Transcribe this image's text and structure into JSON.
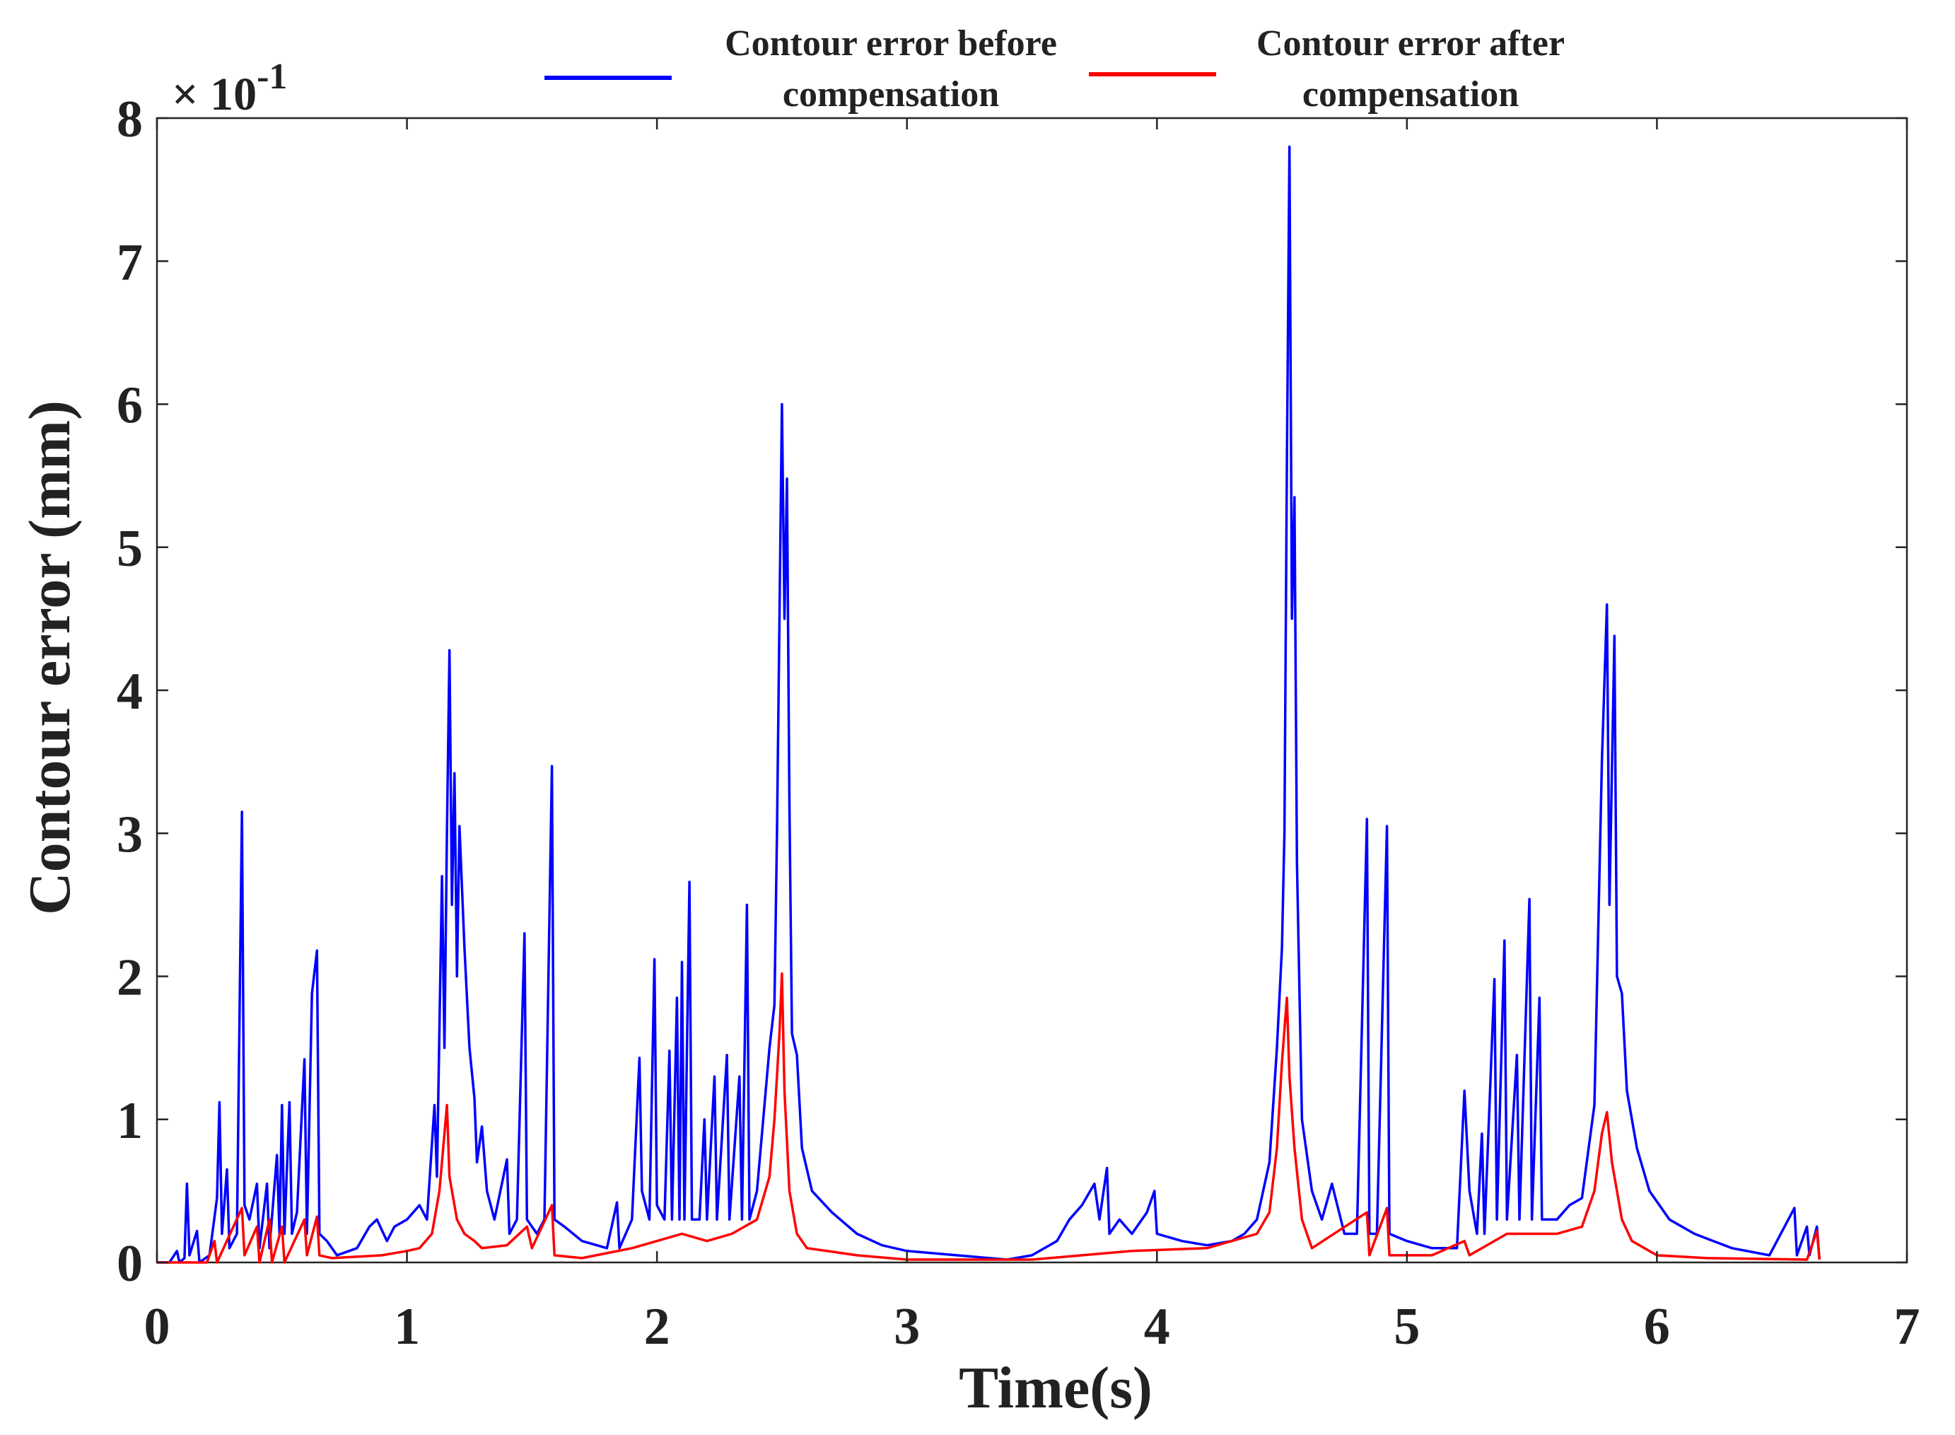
{
  "chart_data": {
    "type": "line",
    "xlabel": "Time(s)",
    "ylabel": "Contour error (mm)",
    "exponent_prefix": "× 10",
    "exponent_power": "-1",
    "xlim": [
      0,
      7
    ],
    "ylim": [
      0,
      8
    ],
    "x_ticks": [
      "0",
      "1",
      "2",
      "3",
      "4",
      "5",
      "6",
      "7"
    ],
    "y_ticks": [
      "0",
      "1",
      "2",
      "3",
      "4",
      "5",
      "6",
      "7",
      "8"
    ],
    "grid": false,
    "legend_position": "top",
    "series": [
      {
        "name_line1": "Contour error before",
        "name_line2": "compensation",
        "color": "#0000ff",
        "points": [
          [
            0.0,
            0.0
          ],
          [
            0.05,
            0.0
          ],
          [
            0.08,
            0.08
          ],
          [
            0.09,
            0.0
          ],
          [
            0.11,
            0.03
          ],
          [
            0.12,
            0.55
          ],
          [
            0.13,
            0.05
          ],
          [
            0.16,
            0.22
          ],
          [
            0.17,
            0.0
          ],
          [
            0.21,
            0.05
          ],
          [
            0.24,
            0.45
          ],
          [
            0.25,
            1.12
          ],
          [
            0.26,
            0.2
          ],
          [
            0.28,
            0.65
          ],
          [
            0.29,
            0.1
          ],
          [
            0.32,
            0.2
          ],
          [
            0.34,
            3.15
          ],
          [
            0.35,
            0.4
          ],
          [
            0.37,
            0.3
          ],
          [
            0.4,
            0.55
          ],
          [
            0.41,
            0.1
          ],
          [
            0.44,
            0.55
          ],
          [
            0.45,
            0.1
          ],
          [
            0.48,
            0.75
          ],
          [
            0.49,
            0.2
          ],
          [
            0.5,
            1.1
          ],
          [
            0.51,
            0.2
          ],
          [
            0.53,
            1.12
          ],
          [
            0.54,
            0.2
          ],
          [
            0.56,
            0.35
          ],
          [
            0.59,
            1.42
          ],
          [
            0.6,
            0.2
          ],
          [
            0.62,
            1.88
          ],
          [
            0.64,
            2.18
          ],
          [
            0.65,
            0.2
          ],
          [
            0.68,
            0.15
          ],
          [
            0.72,
            0.05
          ],
          [
            0.8,
            0.1
          ],
          [
            0.85,
            0.25
          ],
          [
            0.88,
            0.3
          ],
          [
            0.92,
            0.15
          ],
          [
            0.95,
            0.25
          ],
          [
            1.0,
            0.3
          ],
          [
            1.05,
            0.4
          ],
          [
            1.08,
            0.3
          ],
          [
            1.11,
            1.1
          ],
          [
            1.12,
            0.6
          ],
          [
            1.14,
            2.7
          ],
          [
            1.15,
            1.5
          ],
          [
            1.16,
            3.0
          ],
          [
            1.17,
            4.28
          ],
          [
            1.18,
            2.5
          ],
          [
            1.19,
            3.42
          ],
          [
            1.2,
            2.0
          ],
          [
            1.21,
            3.05
          ],
          [
            1.23,
            2.2
          ],
          [
            1.25,
            1.5
          ],
          [
            1.27,
            1.15
          ],
          [
            1.28,
            0.7
          ],
          [
            1.3,
            0.95
          ],
          [
            1.32,
            0.5
          ],
          [
            1.35,
            0.3
          ],
          [
            1.4,
            0.72
          ],
          [
            1.41,
            0.2
          ],
          [
            1.44,
            0.3
          ],
          [
            1.47,
            2.3
          ],
          [
            1.48,
            0.3
          ],
          [
            1.52,
            0.2
          ],
          [
            1.55,
            0.3
          ],
          [
            1.58,
            3.47
          ],
          [
            1.59,
            0.3
          ],
          [
            1.63,
            0.25
          ],
          [
            1.7,
            0.15
          ],
          [
            1.8,
            0.1
          ],
          [
            1.84,
            0.42
          ],
          [
            1.85,
            0.1
          ],
          [
            1.9,
            0.3
          ],
          [
            1.93,
            1.43
          ],
          [
            1.94,
            0.5
          ],
          [
            1.97,
            0.3
          ],
          [
            1.99,
            2.12
          ],
          [
            2.0,
            0.4
          ],
          [
            2.03,
            0.3
          ],
          [
            2.05,
            1.48
          ],
          [
            2.06,
            0.3
          ],
          [
            2.08,
            1.85
          ],
          [
            2.09,
            0.3
          ],
          [
            2.1,
            2.1
          ],
          [
            2.11,
            0.3
          ],
          [
            2.13,
            2.66
          ],
          [
            2.14,
            0.3
          ],
          [
            2.17,
            0.3
          ],
          [
            2.19,
            1.0
          ],
          [
            2.2,
            0.3
          ],
          [
            2.23,
            1.3
          ],
          [
            2.24,
            0.3
          ],
          [
            2.28,
            1.45
          ],
          [
            2.29,
            0.3
          ],
          [
            2.33,
            1.3
          ],
          [
            2.34,
            0.3
          ],
          [
            2.36,
            2.5
          ],
          [
            2.37,
            0.3
          ],
          [
            2.4,
            0.5
          ],
          [
            2.43,
            1.1
          ],
          [
            2.45,
            1.5
          ],
          [
            2.47,
            1.8
          ],
          [
            2.48,
            3.0
          ],
          [
            2.49,
            4.5
          ],
          [
            2.5,
            6.0
          ],
          [
            2.51,
            4.5
          ],
          [
            2.52,
            5.48
          ],
          [
            2.53,
            3.2
          ],
          [
            2.54,
            1.6
          ],
          [
            2.56,
            1.45
          ],
          [
            2.58,
            0.8
          ],
          [
            2.62,
            0.5
          ],
          [
            2.7,
            0.35
          ],
          [
            2.8,
            0.2
          ],
          [
            2.9,
            0.12
          ],
          [
            3.0,
            0.08
          ],
          [
            3.2,
            0.05
          ],
          [
            3.4,
            0.02
          ],
          [
            3.5,
            0.05
          ],
          [
            3.6,
            0.15
          ],
          [
            3.65,
            0.3
          ],
          [
            3.7,
            0.4
          ],
          [
            3.75,
            0.55
          ],
          [
            3.77,
            0.3
          ],
          [
            3.8,
            0.66
          ],
          [
            3.81,
            0.2
          ],
          [
            3.85,
            0.3
          ],
          [
            3.9,
            0.2
          ],
          [
            3.96,
            0.35
          ],
          [
            3.99,
            0.5
          ],
          [
            4.0,
            0.2
          ],
          [
            4.1,
            0.15
          ],
          [
            4.2,
            0.12
          ],
          [
            4.3,
            0.15
          ],
          [
            4.35,
            0.2
          ],
          [
            4.4,
            0.3
          ],
          [
            4.45,
            0.7
          ],
          [
            4.48,
            1.5
          ],
          [
            4.5,
            2.2
          ],
          [
            4.51,
            3.0
          ],
          [
            4.52,
            5.6
          ],
          [
            4.53,
            7.8
          ],
          [
            4.54,
            4.5
          ],
          [
            4.55,
            5.35
          ],
          [
            4.56,
            2.8
          ],
          [
            4.58,
            1.0
          ],
          [
            4.62,
            0.5
          ],
          [
            4.66,
            0.3
          ],
          [
            4.7,
            0.55
          ],
          [
            4.75,
            0.2
          ],
          [
            4.8,
            0.2
          ],
          [
            4.84,
            3.1
          ],
          [
            4.85,
            0.2
          ],
          [
            4.88,
            0.2
          ],
          [
            4.92,
            3.05
          ],
          [
            4.93,
            0.2
          ],
          [
            5.0,
            0.15
          ],
          [
            5.1,
            0.1
          ],
          [
            5.2,
            0.1
          ],
          [
            5.23,
            1.2
          ],
          [
            5.25,
            0.5
          ],
          [
            5.28,
            0.2
          ],
          [
            5.3,
            0.9
          ],
          [
            5.31,
            0.2
          ],
          [
            5.35,
            1.98
          ],
          [
            5.36,
            0.3
          ],
          [
            5.39,
            2.25
          ],
          [
            5.4,
            0.3
          ],
          [
            5.44,
            1.45
          ],
          [
            5.45,
            0.3
          ],
          [
            5.49,
            2.54
          ],
          [
            5.5,
            0.3
          ],
          [
            5.53,
            1.85
          ],
          [
            5.54,
            0.3
          ],
          [
            5.6,
            0.3
          ],
          [
            5.65,
            0.4
          ],
          [
            5.7,
            0.45
          ],
          [
            5.75,
            1.1
          ],
          [
            5.78,
            3.5
          ],
          [
            5.8,
            4.6
          ],
          [
            5.81,
            2.5
          ],
          [
            5.83,
            4.38
          ],
          [
            5.84,
            2.0
          ],
          [
            5.86,
            1.88
          ],
          [
            5.88,
            1.2
          ],
          [
            5.92,
            0.8
          ],
          [
            5.97,
            0.5
          ],
          [
            6.05,
            0.3
          ],
          [
            6.15,
            0.2
          ],
          [
            6.3,
            0.1
          ],
          [
            6.45,
            0.05
          ],
          [
            6.55,
            0.38
          ],
          [
            6.56,
            0.05
          ],
          [
            6.6,
            0.25
          ],
          [
            6.61,
            0.05
          ],
          [
            6.64,
            0.25
          ],
          [
            6.65,
            0.02
          ]
        ]
      },
      {
        "name_line1": "Contour error after",
        "name_line2": "compensation",
        "color": "#ff0000",
        "points": [
          [
            0.0,
            0.0
          ],
          [
            0.2,
            0.0
          ],
          [
            0.23,
            0.15
          ],
          [
            0.24,
            0.0
          ],
          [
            0.34,
            0.38
          ],
          [
            0.35,
            0.05
          ],
          [
            0.4,
            0.25
          ],
          [
            0.41,
            0.0
          ],
          [
            0.45,
            0.3
          ],
          [
            0.46,
            0.0
          ],
          [
            0.5,
            0.25
          ],
          [
            0.51,
            0.0
          ],
          [
            0.59,
            0.3
          ],
          [
            0.6,
            0.05
          ],
          [
            0.64,
            0.32
          ],
          [
            0.65,
            0.05
          ],
          [
            0.7,
            0.03
          ],
          [
            0.9,
            0.05
          ],
          [
            1.0,
            0.08
          ],
          [
            1.05,
            0.1
          ],
          [
            1.1,
            0.2
          ],
          [
            1.13,
            0.5
          ],
          [
            1.15,
            0.9
          ],
          [
            1.16,
            1.1
          ],
          [
            1.17,
            0.6
          ],
          [
            1.2,
            0.3
          ],
          [
            1.23,
            0.2
          ],
          [
            1.27,
            0.15
          ],
          [
            1.3,
            0.1
          ],
          [
            1.4,
            0.12
          ],
          [
            1.48,
            0.25
          ],
          [
            1.5,
            0.1
          ],
          [
            1.58,
            0.4
          ],
          [
            1.59,
            0.05
          ],
          [
            1.7,
            0.03
          ],
          [
            1.9,
            0.1
          ],
          [
            2.0,
            0.15
          ],
          [
            2.1,
            0.2
          ],
          [
            2.2,
            0.15
          ],
          [
            2.3,
            0.2
          ],
          [
            2.4,
            0.3
          ],
          [
            2.45,
            0.6
          ],
          [
            2.47,
            1.0
          ],
          [
            2.49,
            1.6
          ],
          [
            2.5,
            2.02
          ],
          [
            2.51,
            1.2
          ],
          [
            2.53,
            0.5
          ],
          [
            2.56,
            0.2
          ],
          [
            2.6,
            0.1
          ],
          [
            2.8,
            0.05
          ],
          [
            3.0,
            0.02
          ],
          [
            3.5,
            0.02
          ],
          [
            3.7,
            0.05
          ],
          [
            3.9,
            0.08
          ],
          [
            4.2,
            0.1
          ],
          [
            4.4,
            0.2
          ],
          [
            4.45,
            0.35
          ],
          [
            4.48,
            0.8
          ],
          [
            4.5,
            1.4
          ],
          [
            4.52,
            1.85
          ],
          [
            4.53,
            1.3
          ],
          [
            4.55,
            0.8
          ],
          [
            4.58,
            0.3
          ],
          [
            4.62,
            0.1
          ],
          [
            4.84,
            0.35
          ],
          [
            4.85,
            0.05
          ],
          [
            4.92,
            0.38
          ],
          [
            4.93,
            0.05
          ],
          [
            5.1,
            0.05
          ],
          [
            5.23,
            0.15
          ],
          [
            5.25,
            0.05
          ],
          [
            5.4,
            0.2
          ],
          [
            5.5,
            0.2
          ],
          [
            5.6,
            0.2
          ],
          [
            5.7,
            0.25
          ],
          [
            5.75,
            0.5
          ],
          [
            5.78,
            0.9
          ],
          [
            5.8,
            1.05
          ],
          [
            5.82,
            0.7
          ],
          [
            5.84,
            0.5
          ],
          [
            5.86,
            0.3
          ],
          [
            5.9,
            0.15
          ],
          [
            6.0,
            0.05
          ],
          [
            6.2,
            0.03
          ],
          [
            6.6,
            0.02
          ],
          [
            6.64,
            0.22
          ],
          [
            6.65,
            0.02
          ]
        ]
      }
    ]
  }
}
